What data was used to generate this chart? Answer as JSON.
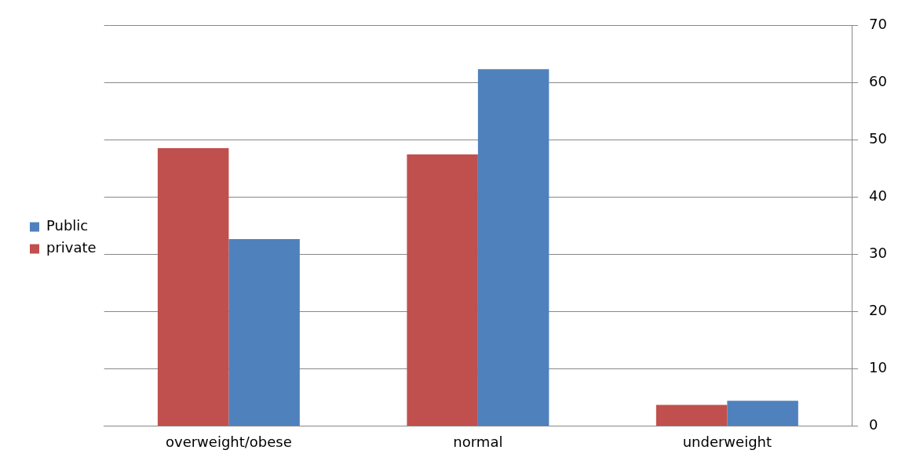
{
  "chart_data": {
    "type": "bar",
    "categories": [
      "overweight/obese",
      "normal",
      "underweight"
    ],
    "series": [
      {
        "name": "private",
        "color": "#c0504d",
        "values": [
          48.6,
          47.5,
          3.7
        ]
      },
      {
        "name": "Public",
        "color": "#4f81bd",
        "values": [
          32.7,
          62.4,
          4.4
        ]
      }
    ],
    "ylim": [
      0,
      70
    ],
    "yticks": [
      0,
      10,
      20,
      30,
      40,
      50,
      60,
      70
    ],
    "grid": "y",
    "legend": "left"
  }
}
